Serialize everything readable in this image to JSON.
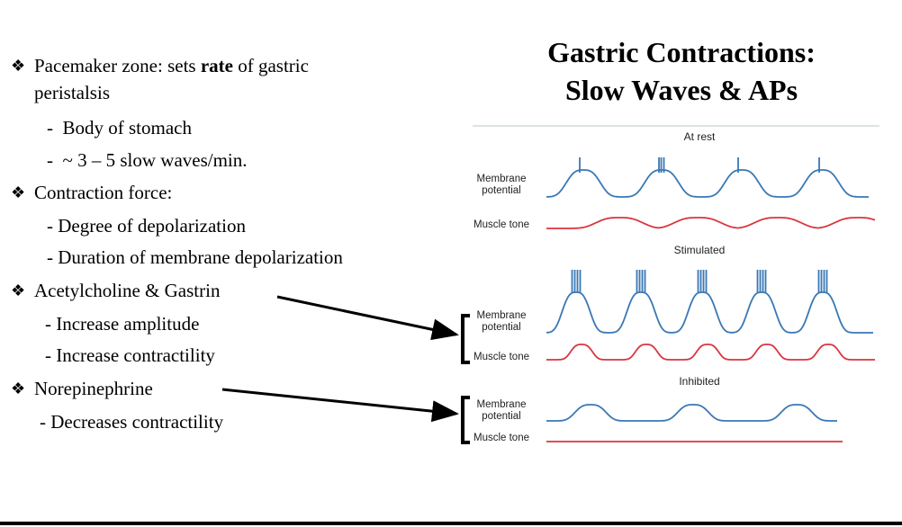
{
  "title": {
    "line1": "Gastric Contractions:",
    "line2": "Slow Waves & APs"
  },
  "bullets": [
    {
      "symbol": "❖",
      "text": [
        "Pacemaker zone: sets ",
        "rate",
        " of gastric"
      ],
      "continuation": "peristalsis",
      "subitems": [
        "-  Body of stomach",
        "-  ~ 3 – 5 slow waves/min."
      ]
    },
    {
      "symbol": "❖",
      "text": [
        "Contraction force:"
      ],
      "subitems": [
        "- Degree of depolarization",
        "- Duration of membrane depolarization"
      ]
    },
    {
      "symbol": "❖",
      "text": [
        "Acetylcholine & Gastrin"
      ],
      "subitems": [
        "- Increase amplitude",
        "- Increase contractility"
      ]
    },
    {
      "symbol": "❖",
      "text": [
        "Norepinephrine"
      ],
      "subitems": [
        "- Decreases contractility"
      ]
    }
  ],
  "figure": {
    "panels": [
      {
        "title": "At rest",
        "labels": [
          "Membrane potential",
          "Muscle tone"
        ]
      },
      {
        "title": "Stimulated",
        "labels": [
          "Membrane potential",
          "Muscle tone"
        ]
      },
      {
        "title": "Inhibited",
        "labels": [
          "Membrane potential",
          "Muscle tone"
        ]
      }
    ]
  }
}
